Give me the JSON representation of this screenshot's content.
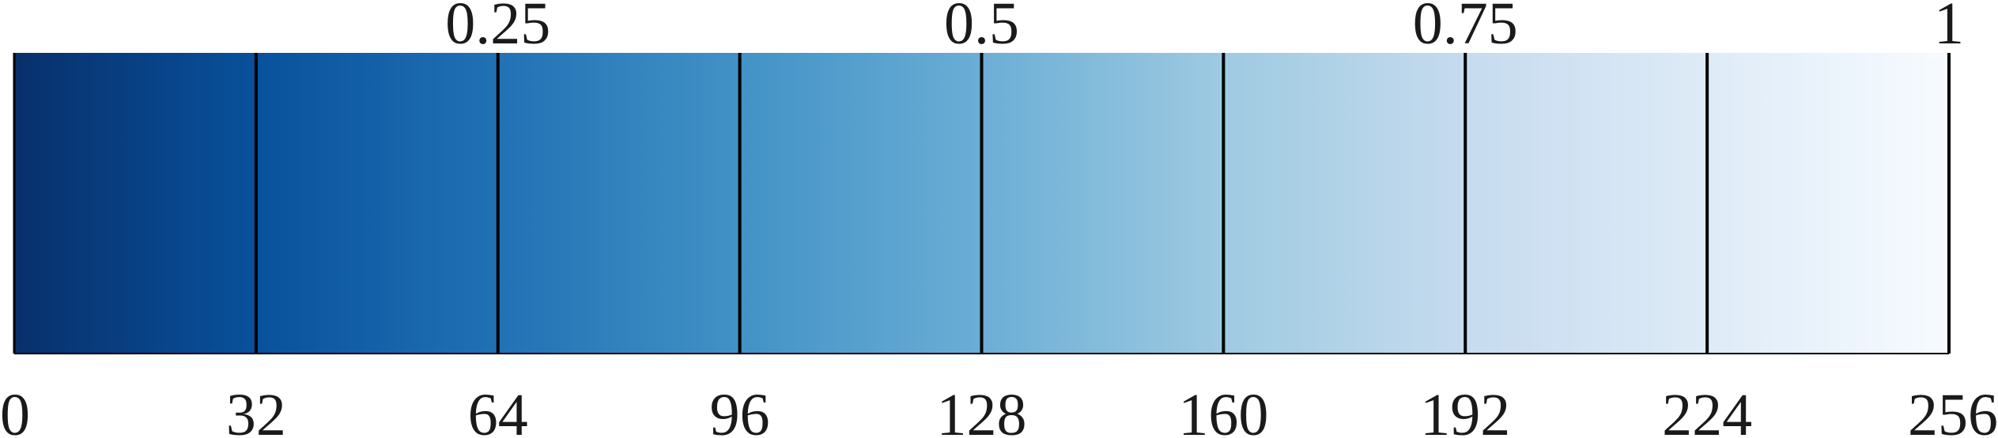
{
  "chart_data": {
    "type": "colorbar",
    "colormap": "Blues (reversed)",
    "colors": [
      "#08306b",
      "#08519c",
      "#2171b5",
      "#4292c6",
      "#6baed6",
      "#9ecae1",
      "#c6dbef",
      "#deebf7",
      "#f7fbff"
    ],
    "bottom_axis": {
      "ticks": [
        0,
        32,
        64,
        96,
        128,
        160,
        192,
        224,
        256
      ],
      "labels": [
        "0",
        "32",
        "64",
        "96",
        "128",
        "160",
        "192",
        "224",
        "256"
      ],
      "range": [
        0,
        256
      ]
    },
    "top_axis": {
      "ticks": [
        0.25,
        0.5,
        0.75,
        1
      ],
      "labels": [
        "0.25",
        "0.5",
        "0.75",
        "1"
      ],
      "range": [
        0,
        1
      ]
    },
    "band_dividers": [
      32,
      64,
      96,
      128,
      160,
      192,
      224
    ]
  }
}
